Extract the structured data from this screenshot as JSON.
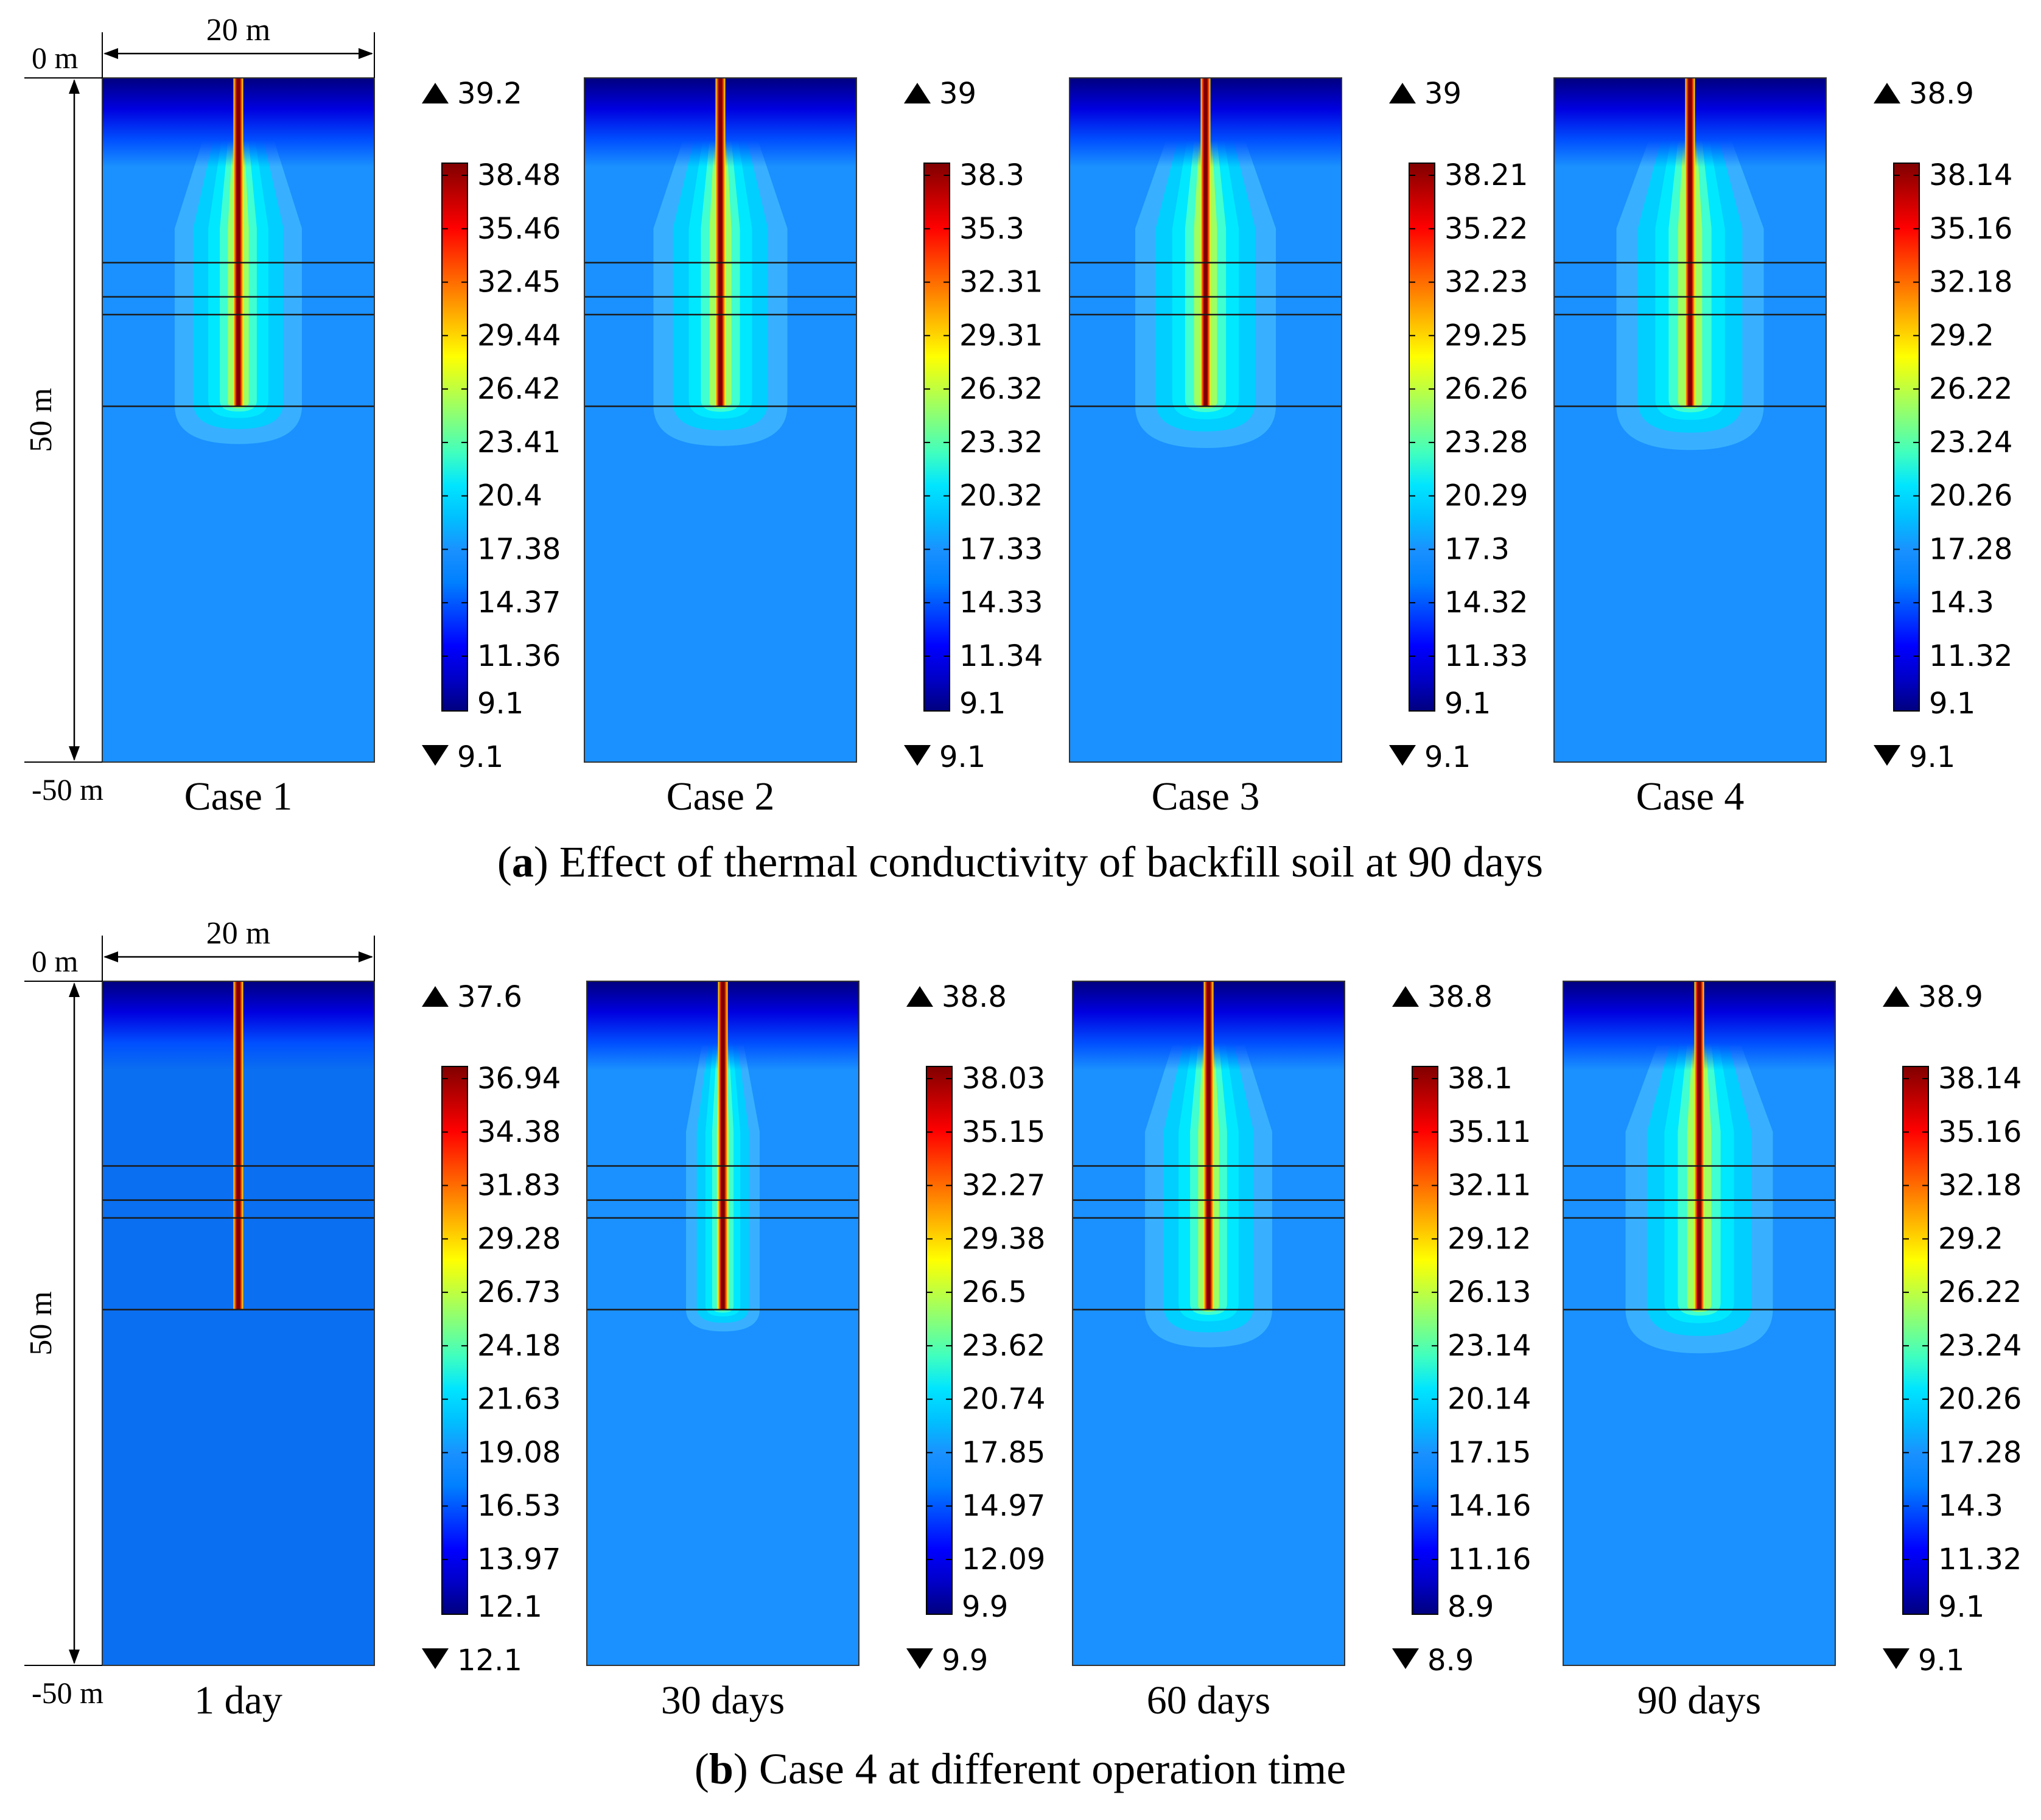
{
  "scale_labels": {
    "width": "20 m",
    "depth": "50 m",
    "top": "0 m",
    "bottom": "-50 m"
  },
  "rows": [
    {
      "id": "a",
      "caption_letter": "a",
      "caption_text": ") Effect of thermal conductivity of backfill soil at 90 days",
      "panels": [
        {
          "label": "Case 1",
          "max": "39.2",
          "min": "9.1",
          "ticks": [
            "38.48",
            "35.46",
            "32.45",
            "29.44",
            "26.42",
            "23.41",
            "20.4",
            "17.38",
            "14.37",
            "11.36",
            "9.1"
          ],
          "plume": 0.95,
          "bg": "#1a91ff"
        },
        {
          "label": "Case 2",
          "max": "39",
          "min": "9.1",
          "ticks": [
            "38.3",
            "35.3",
            "32.31",
            "29.31",
            "26.32",
            "23.32",
            "20.32",
            "17.33",
            "14.33",
            "11.34",
            "9.1"
          ],
          "plume": 1.0,
          "bg": "#1a91ff"
        },
        {
          "label": "Case 3",
          "max": "39",
          "min": "9.1",
          "ticks": [
            "38.21",
            "35.22",
            "32.23",
            "29.25",
            "26.26",
            "23.28",
            "20.29",
            "17.3",
            "14.32",
            "11.33",
            "9.1"
          ],
          "plume": 1.05,
          "bg": "#1a91ff"
        },
        {
          "label": "Case 4",
          "max": "38.9",
          "min": "9.1",
          "ticks": [
            "38.14",
            "35.16",
            "32.18",
            "29.2",
            "26.22",
            "23.24",
            "20.26",
            "17.28",
            "14.3",
            "11.32",
            "9.1"
          ],
          "plume": 1.1,
          "bg": "#1a91ff"
        }
      ]
    },
    {
      "id": "b",
      "caption_letter": "b",
      "caption_text": ") Case 4 at different operation time",
      "panels": [
        {
          "label": "1 day",
          "max": "37.6",
          "min": "12.1",
          "ticks": [
            "36.94",
            "34.38",
            "31.83",
            "29.28",
            "26.73",
            "24.18",
            "21.63",
            "19.08",
            "16.53",
            "13.97",
            "12.1"
          ],
          "plume": 0.0,
          "bg": "#0a6ff0"
        },
        {
          "label": "30 days",
          "max": "38.8",
          "min": "9.9",
          "ticks": [
            "38.03",
            "35.15",
            "32.27",
            "29.38",
            "26.5",
            "23.62",
            "20.74",
            "17.85",
            "14.97",
            "12.09",
            "9.9"
          ],
          "plume": 0.55,
          "bg": "#1a91ff"
        },
        {
          "label": "60 days",
          "max": "38.8",
          "min": "8.9",
          "ticks": [
            "38.1",
            "35.11",
            "32.11",
            "29.12",
            "26.13",
            "23.14",
            "20.14",
            "17.15",
            "14.16",
            "11.16",
            "8.9"
          ],
          "plume": 0.95,
          "bg": "#1a91ff"
        },
        {
          "label": "90 days",
          "max": "38.9",
          "min": "9.1",
          "ticks": [
            "38.14",
            "35.16",
            "32.18",
            "29.2",
            "26.22",
            "23.24",
            "20.26",
            "17.28",
            "14.3",
            "11.32",
            "9.1"
          ],
          "plume": 1.1,
          "bg": "#1a91ff"
        }
      ]
    }
  ],
  "colors": {
    "colormap": [
      "#00007f",
      "#0000c8",
      "#0000ff",
      "#0040ff",
      "#0080ff",
      "#1a91ff",
      "#00c0ff",
      "#00e5ff",
      "#40ffbf",
      "#80ff80",
      "#bfff40",
      "#ffff00",
      "#ffc000",
      "#ff8000",
      "#ff4000",
      "#ff0000",
      "#c00000",
      "#800000"
    ]
  }
}
